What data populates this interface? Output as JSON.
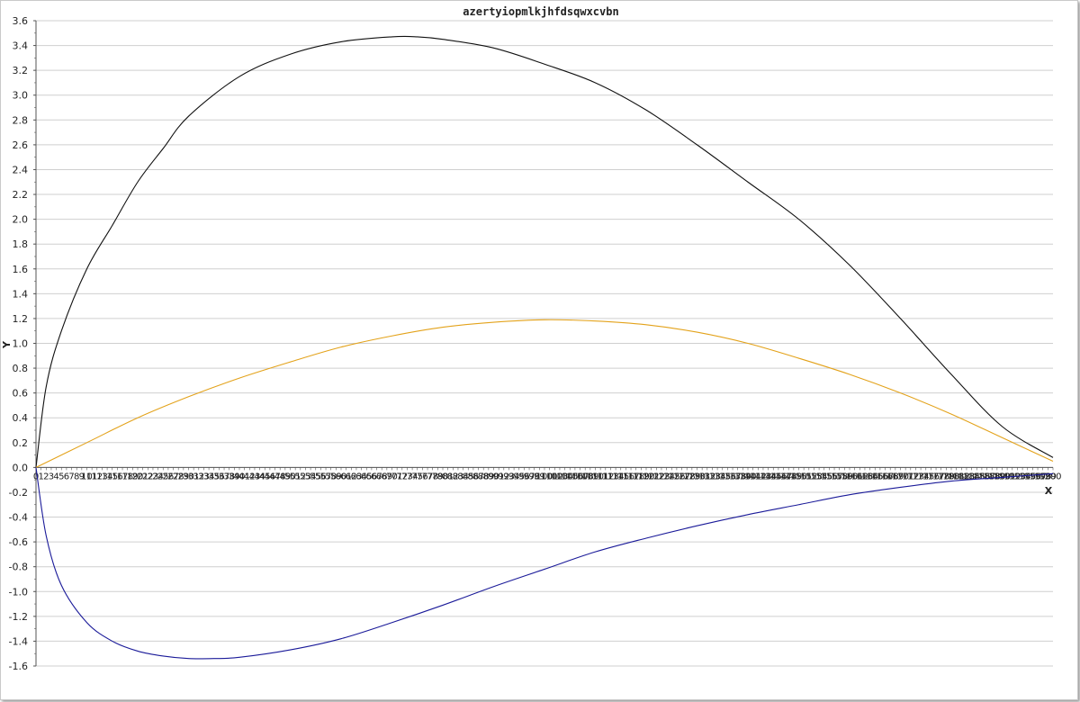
{
  "chart_data": {
    "type": "line",
    "title": "azertyiopmlkjhfdsqwxcvbn",
    "xlabel": "X",
    "ylabel": "Y",
    "xlim": [
      0,
      200
    ],
    "ylim": [
      -1.6,
      3.6
    ],
    "y_ticks": [
      3.6,
      3.4,
      3.2,
      3.0,
      2.8,
      2.6,
      2.4,
      2.2,
      2.0,
      1.8,
      1.6,
      1.4,
      1.2,
      1.0,
      0.8,
      0.6,
      0.4,
      0.2,
      0.0,
      -0.2,
      -0.4,
      -0.6,
      -0.8,
      -1.0,
      -1.2,
      -1.4,
      -1.6
    ],
    "x_tick_labels_from": 0,
    "x_tick_labels_to": 200,
    "grid": "horizontal",
    "colors": {
      "upper": "#111111",
      "camber": "#e3a21a",
      "lower": "#1a1a99",
      "grid": "#cfcfcf",
      "axis": "#555555"
    },
    "series": [
      {
        "key": "upper",
        "x": [
          0,
          2,
          5,
          10,
          15,
          20,
          25,
          30,
          40,
          50,
          60,
          70,
          75,
          80,
          90,
          100,
          110,
          120,
          130,
          140,
          150,
          160,
          170,
          180,
          190,
          200
        ],
        "y": [
          0.0,
          0.65,
          1.1,
          1.6,
          1.95,
          2.3,
          2.57,
          2.83,
          3.15,
          3.33,
          3.43,
          3.47,
          3.47,
          3.45,
          3.38,
          3.25,
          3.1,
          2.88,
          2.6,
          2.3,
          2.0,
          1.63,
          1.2,
          0.75,
          0.33,
          0.08
        ]
      },
      {
        "key": "camber",
        "x": [
          0,
          10,
          20,
          30,
          40,
          50,
          60,
          70,
          80,
          90,
          100,
          110,
          120,
          130,
          140,
          150,
          160,
          170,
          180,
          190,
          200
        ],
        "y": [
          0.0,
          0.2,
          0.4,
          0.57,
          0.72,
          0.85,
          0.97,
          1.06,
          1.13,
          1.17,
          1.19,
          1.18,
          1.15,
          1.09,
          1.0,
          0.88,
          0.75,
          0.6,
          0.43,
          0.24,
          0.05
        ]
      },
      {
        "key": "lower",
        "x": [
          0,
          2,
          5,
          10,
          15,
          20,
          25,
          30,
          35,
          40,
          50,
          60,
          70,
          80,
          90,
          100,
          110,
          120,
          130,
          140,
          150,
          160,
          170,
          180,
          190,
          200
        ],
        "y": [
          0.0,
          -0.55,
          -0.95,
          -1.25,
          -1.4,
          -1.48,
          -1.52,
          -1.54,
          -1.54,
          -1.53,
          -1.47,
          -1.38,
          -1.25,
          -1.11,
          -0.96,
          -0.82,
          -0.68,
          -0.57,
          -0.47,
          -0.38,
          -0.3,
          -0.22,
          -0.16,
          -0.11,
          -0.08,
          -0.05
        ]
      }
    ]
  }
}
